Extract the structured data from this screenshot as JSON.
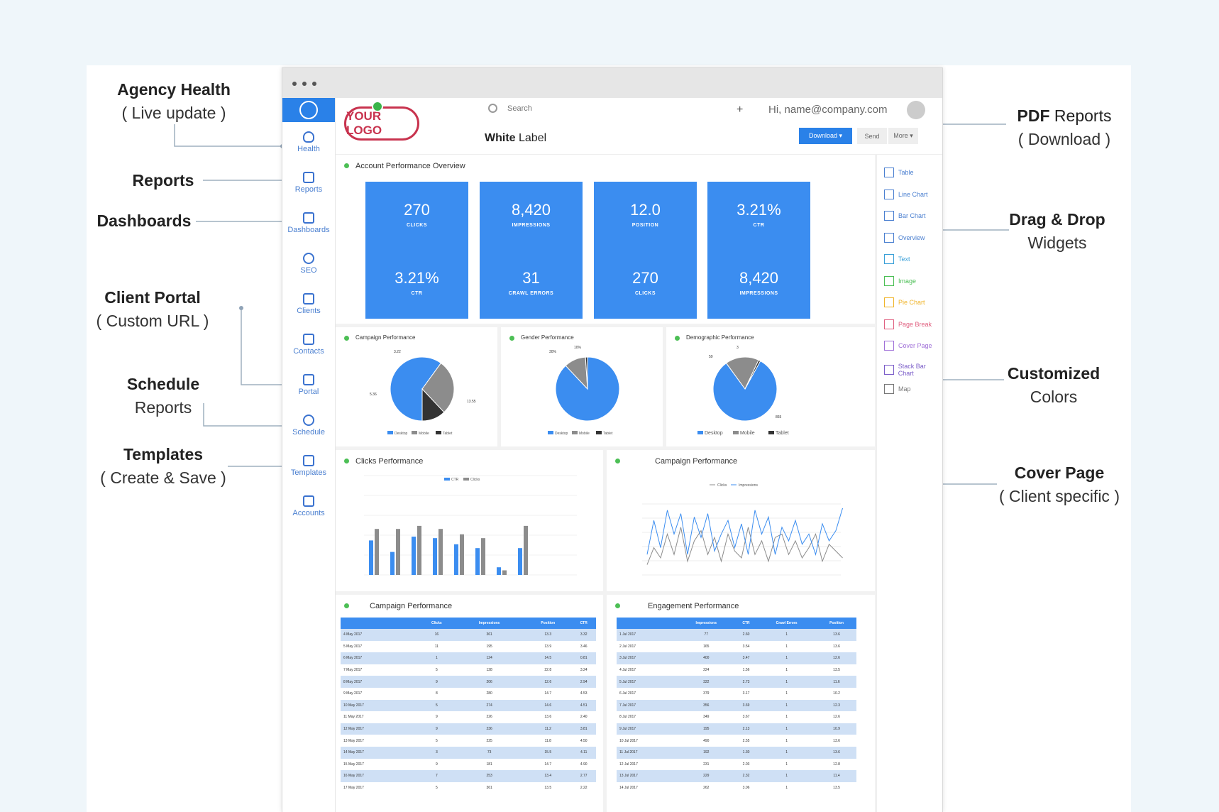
{
  "annotations": {
    "agency_health": {
      "title": "Agency Health",
      "sub": "( Live update )"
    },
    "reports": {
      "title": "Reports"
    },
    "dashboards": {
      "title": "Dashboards"
    },
    "client_portal": {
      "title": "Client Portal",
      "sub": "( Custom URL )"
    },
    "schedule": {
      "title": "Schedule",
      "sub": "Reports"
    },
    "templates": {
      "title": "Templates",
      "sub": "( Create & Save )"
    },
    "pdf": {
      "title": "PDF",
      "title2": "Reports",
      "sub": "( Download )"
    },
    "drag": {
      "title": "Drag & Drop",
      "sub": "Widgets"
    },
    "colors": {
      "title": "Customized",
      "sub": "Colors"
    },
    "cover": {
      "title": "Cover Page",
      "sub": "( Client specific )"
    }
  },
  "sidebar": {
    "items": [
      {
        "label": "Health",
        "icon": "heart-icon"
      },
      {
        "label": "Reports",
        "icon": "document-icon"
      },
      {
        "label": "Dashboards",
        "icon": "grid-icon"
      },
      {
        "label": "SEO",
        "icon": "globe-icon"
      },
      {
        "label": "Clients",
        "icon": "briefcase-icon"
      },
      {
        "label": "Contacts",
        "icon": "phone-icon"
      },
      {
        "label": "Portal",
        "icon": "monitor-icon"
      },
      {
        "label": "Schedule",
        "icon": "clock-icon"
      },
      {
        "label": "Templates",
        "icon": "layers-icon"
      },
      {
        "label": "Accounts",
        "icon": "folder-icon"
      }
    ]
  },
  "header": {
    "logo": "YOUR LOGO",
    "white_label_b": "White",
    "white_label": " Label",
    "search_placeholder": "Search",
    "plus": "+",
    "greeting": "Hi, name@company.com",
    "download": "Download ▾",
    "send": "Send",
    "more": "More ▾"
  },
  "overview": {
    "title": "Account Performance Overview",
    "kpis": [
      {
        "value": "270",
        "label": "CLICKS"
      },
      {
        "value": "8,420",
        "label": "IMPRESSIONS"
      },
      {
        "value": "12.0",
        "label": "POSITION"
      },
      {
        "value": "3.21%",
        "label": "CTR"
      },
      {
        "value": "3.21%",
        "label": "CTR"
      },
      {
        "value": "31",
        "label": "CRAWL ERRORS"
      },
      {
        "value": "270",
        "label": "CLICKS"
      },
      {
        "value": "8,420",
        "label": "IMPRESSIONS"
      }
    ]
  },
  "pies": [
    {
      "title": "Campaign Performance",
      "legend": [
        "Desktop",
        "Mobile",
        "Tablet"
      ],
      "labels": [
        "3.22",
        "5.36",
        "13.55"
      ],
      "slices": [
        0.6,
        0.28,
        0.12
      ]
    },
    {
      "title": "Gender Performance",
      "legend": [
        "Desktop",
        "Mobile",
        "Tablet"
      ],
      "labels": [
        "10%",
        "30%"
      ],
      "slices": [
        0.88,
        0.11,
        0.01
      ]
    },
    {
      "title": "Demographic Performance",
      "legend": [
        "Desktop",
        "Mobile",
        "Tablet"
      ],
      "labels": [
        "59",
        "3",
        "865"
      ],
      "slices": [
        0.82,
        0.17,
        0.01
      ]
    }
  ],
  "clicks_chart": {
    "title": "Clicks Performance",
    "legend": [
      "CTR",
      "Clicks"
    ],
    "blue": [
      0.45,
      0.3,
      0.5,
      0.48,
      0.4,
      0.35,
      0.1,
      0.35
    ],
    "gray": [
      0.6,
      0.6,
      0.64,
      0.6,
      0.53,
      0.48,
      0.06,
      0.64
    ]
  },
  "campaign_line": {
    "title": "Campaign Performance",
    "legend": [
      "Clicks",
      "Impressions"
    ]
  },
  "campaign_table": {
    "title": "Campaign Performance",
    "headers": [
      "",
      "Clicks",
      "Impressions",
      "Position",
      "CTR"
    ],
    "rows": [
      [
        "4 May 2017",
        "16",
        "361",
        "13.3",
        "3.32"
      ],
      [
        "5 May 2017",
        "11",
        "195",
        "13.9",
        "3.46"
      ],
      [
        "6 May 2017",
        "1",
        "124",
        "14.5",
        "0.81"
      ],
      [
        "7 May 2017",
        "5",
        "128",
        "22.8",
        "3.24"
      ],
      [
        "8 May 2017",
        "9",
        "206",
        "12.6",
        "2.94"
      ],
      [
        "9 May 2017",
        "8",
        "280",
        "14.7",
        "4.53"
      ],
      [
        "10 May 2017",
        "5",
        "274",
        "14.6",
        "4.51"
      ],
      [
        "11 May 2017",
        "9",
        "226",
        "13.6",
        "2.40"
      ],
      [
        "12 May 2017",
        "9",
        "236",
        "11.2",
        "3.81"
      ],
      [
        "13 May 2017",
        "5",
        "225",
        "11.8",
        "4.50"
      ],
      [
        "14 May 2017",
        "3",
        "73",
        "15.5",
        "4.11"
      ],
      [
        "15 May 2017",
        "9",
        "181",
        "14.7",
        "4.90"
      ],
      [
        "16 May 2017",
        "7",
        "253",
        "13.4",
        "2.77"
      ],
      [
        "17 May 2017",
        "5",
        "361",
        "13.5",
        "2.22"
      ]
    ]
  },
  "engagement_table": {
    "title": "Engagement Performance",
    "headers": [
      "",
      "Impressions",
      "CTR",
      "Crawl Errors",
      "Position"
    ],
    "rows": [
      [
        "1 Jul 2017",
        "77",
        "2.60",
        "1",
        "13.6"
      ],
      [
        "2 Jul 2017",
        "165",
        "3.54",
        "1",
        "13.6"
      ],
      [
        "3 Jul 2017",
        "400",
        "3.47",
        "1",
        "12.6"
      ],
      [
        "4 Jul 2017",
        "224",
        "1.56",
        "1",
        "13.5"
      ],
      [
        "5 Jul 2017",
        "322",
        "2.73",
        "1",
        "11.6"
      ],
      [
        "6 Jul 2017",
        "379",
        "3.17",
        "1",
        "10.2"
      ],
      [
        "7 Jul 2017",
        "356",
        "3.69",
        "1",
        "12.3"
      ],
      [
        "8 Jul 2017",
        "349",
        "3.67",
        "1",
        "12.6"
      ],
      [
        "9 Jul 2017",
        "195",
        "2.13",
        "1",
        "10.9"
      ],
      [
        "10 Jul 2017",
        "490",
        "2.55",
        "1",
        "13.6"
      ],
      [
        "11 Jul 2017",
        "192",
        "1.30",
        "1",
        "13.6"
      ],
      [
        "12 Jul 2017",
        "231",
        "2.03",
        "1",
        "12.8"
      ],
      [
        "13 Jul 2017",
        "229",
        "2.32",
        "1",
        "11.4"
      ],
      [
        "14 Jul 2017",
        "262",
        "3.06",
        "1",
        "13.5"
      ]
    ]
  },
  "widgets": [
    {
      "label": "Table",
      "color": "#4a7fd0",
      "icon": "table-icon"
    },
    {
      "label": "Line Chart",
      "color": "#4a7fd0",
      "icon": "line-chart-icon"
    },
    {
      "label": "Bar Chart",
      "color": "#4a7fd0",
      "icon": "bar-chart-icon"
    },
    {
      "label": "Overview",
      "color": "#4a7fd0",
      "icon": "overview-icon"
    },
    {
      "label": "Text",
      "color": "#3aa0d8",
      "icon": "text-icon"
    },
    {
      "label": "Image",
      "color": "#4cbf55",
      "icon": "image-icon"
    },
    {
      "label": "Pie Chart",
      "color": "#f0b429",
      "icon": "pie-chart-icon"
    },
    {
      "label": "Page Break",
      "color": "#e06080",
      "icon": "page-break-icon"
    },
    {
      "label": "Cover Page",
      "color": "#a070d8",
      "icon": "cover-page-icon"
    },
    {
      "label": "Stack Bar Chart",
      "color": "#7a5cc8",
      "icon": "stack-bar-icon"
    },
    {
      "label": "Map",
      "color": "#777777",
      "icon": "map-icon"
    }
  ],
  "colors": {
    "primary": "#3b8df0",
    "gray": "#8c8c8c",
    "dark": "#333333",
    "green": "#4cbf55",
    "logo": "#c8334e"
  }
}
